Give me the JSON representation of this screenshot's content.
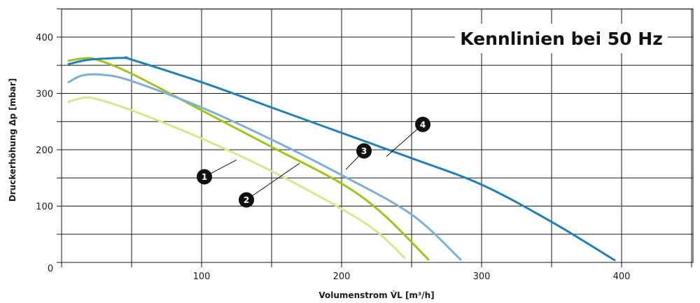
{
  "chart_data": {
    "type": "line",
    "title": "Kennlinien bei 50 Hz",
    "xlabel": "Volumenstrom V̇L [m³/h]",
    "ylabel": "Druckerhöhung Δp [mbar]",
    "xlim": [
      0,
      450
    ],
    "ylim": [
      0,
      450
    ],
    "x_ticks": [
      100,
      200,
      300,
      400
    ],
    "y_ticks": [
      100,
      200,
      300,
      400
    ],
    "origin_label": "0",
    "grid": true,
    "series": [
      {
        "marker": "1",
        "color": "#d6e88d",
        "x": [
          5,
          15,
          25,
          50,
          100,
          150,
          200,
          225,
          245
        ],
        "y": [
          285,
          292,
          290,
          270,
          220,
          162,
          95,
          55,
          8
        ],
        "label_anchor": [
          125,
          182
        ]
      },
      {
        "marker": "2",
        "color": "#9bc61c",
        "x": [
          5,
          15,
          25,
          50,
          100,
          150,
          200,
          230,
          262
        ],
        "y": [
          358,
          362,
          360,
          335,
          270,
          205,
          140,
          85,
          5
        ],
        "label_anchor": [
          170,
          176
        ]
      },
      {
        "marker": "3",
        "color": "#7db0d6",
        "x": [
          5,
          15,
          30,
          50,
          100,
          150,
          200,
          250,
          285
        ],
        "y": [
          320,
          332,
          333,
          322,
          275,
          218,
          155,
          85,
          5
        ],
        "label_anchor": [
          203,
          165
        ]
      },
      {
        "marker": "4",
        "color": "#1f80b7",
        "x": [
          5,
          20,
          45,
          50,
          100,
          150,
          200,
          250,
          300,
          350,
          395
        ],
        "y": [
          352,
          360,
          363,
          360,
          320,
          275,
          230,
          185,
          138,
          72,
          4
        ],
        "label_anchor": [
          232,
          188
        ]
      }
    ],
    "badges": [
      {
        "text": "1",
        "x": 102,
        "y": 152
      },
      {
        "text": "2",
        "x": 132,
        "y": 111
      },
      {
        "text": "3",
        "x": 216,
        "y": 198
      },
      {
        "text": "4",
        "x": 258,
        "y": 245
      }
    ]
  }
}
